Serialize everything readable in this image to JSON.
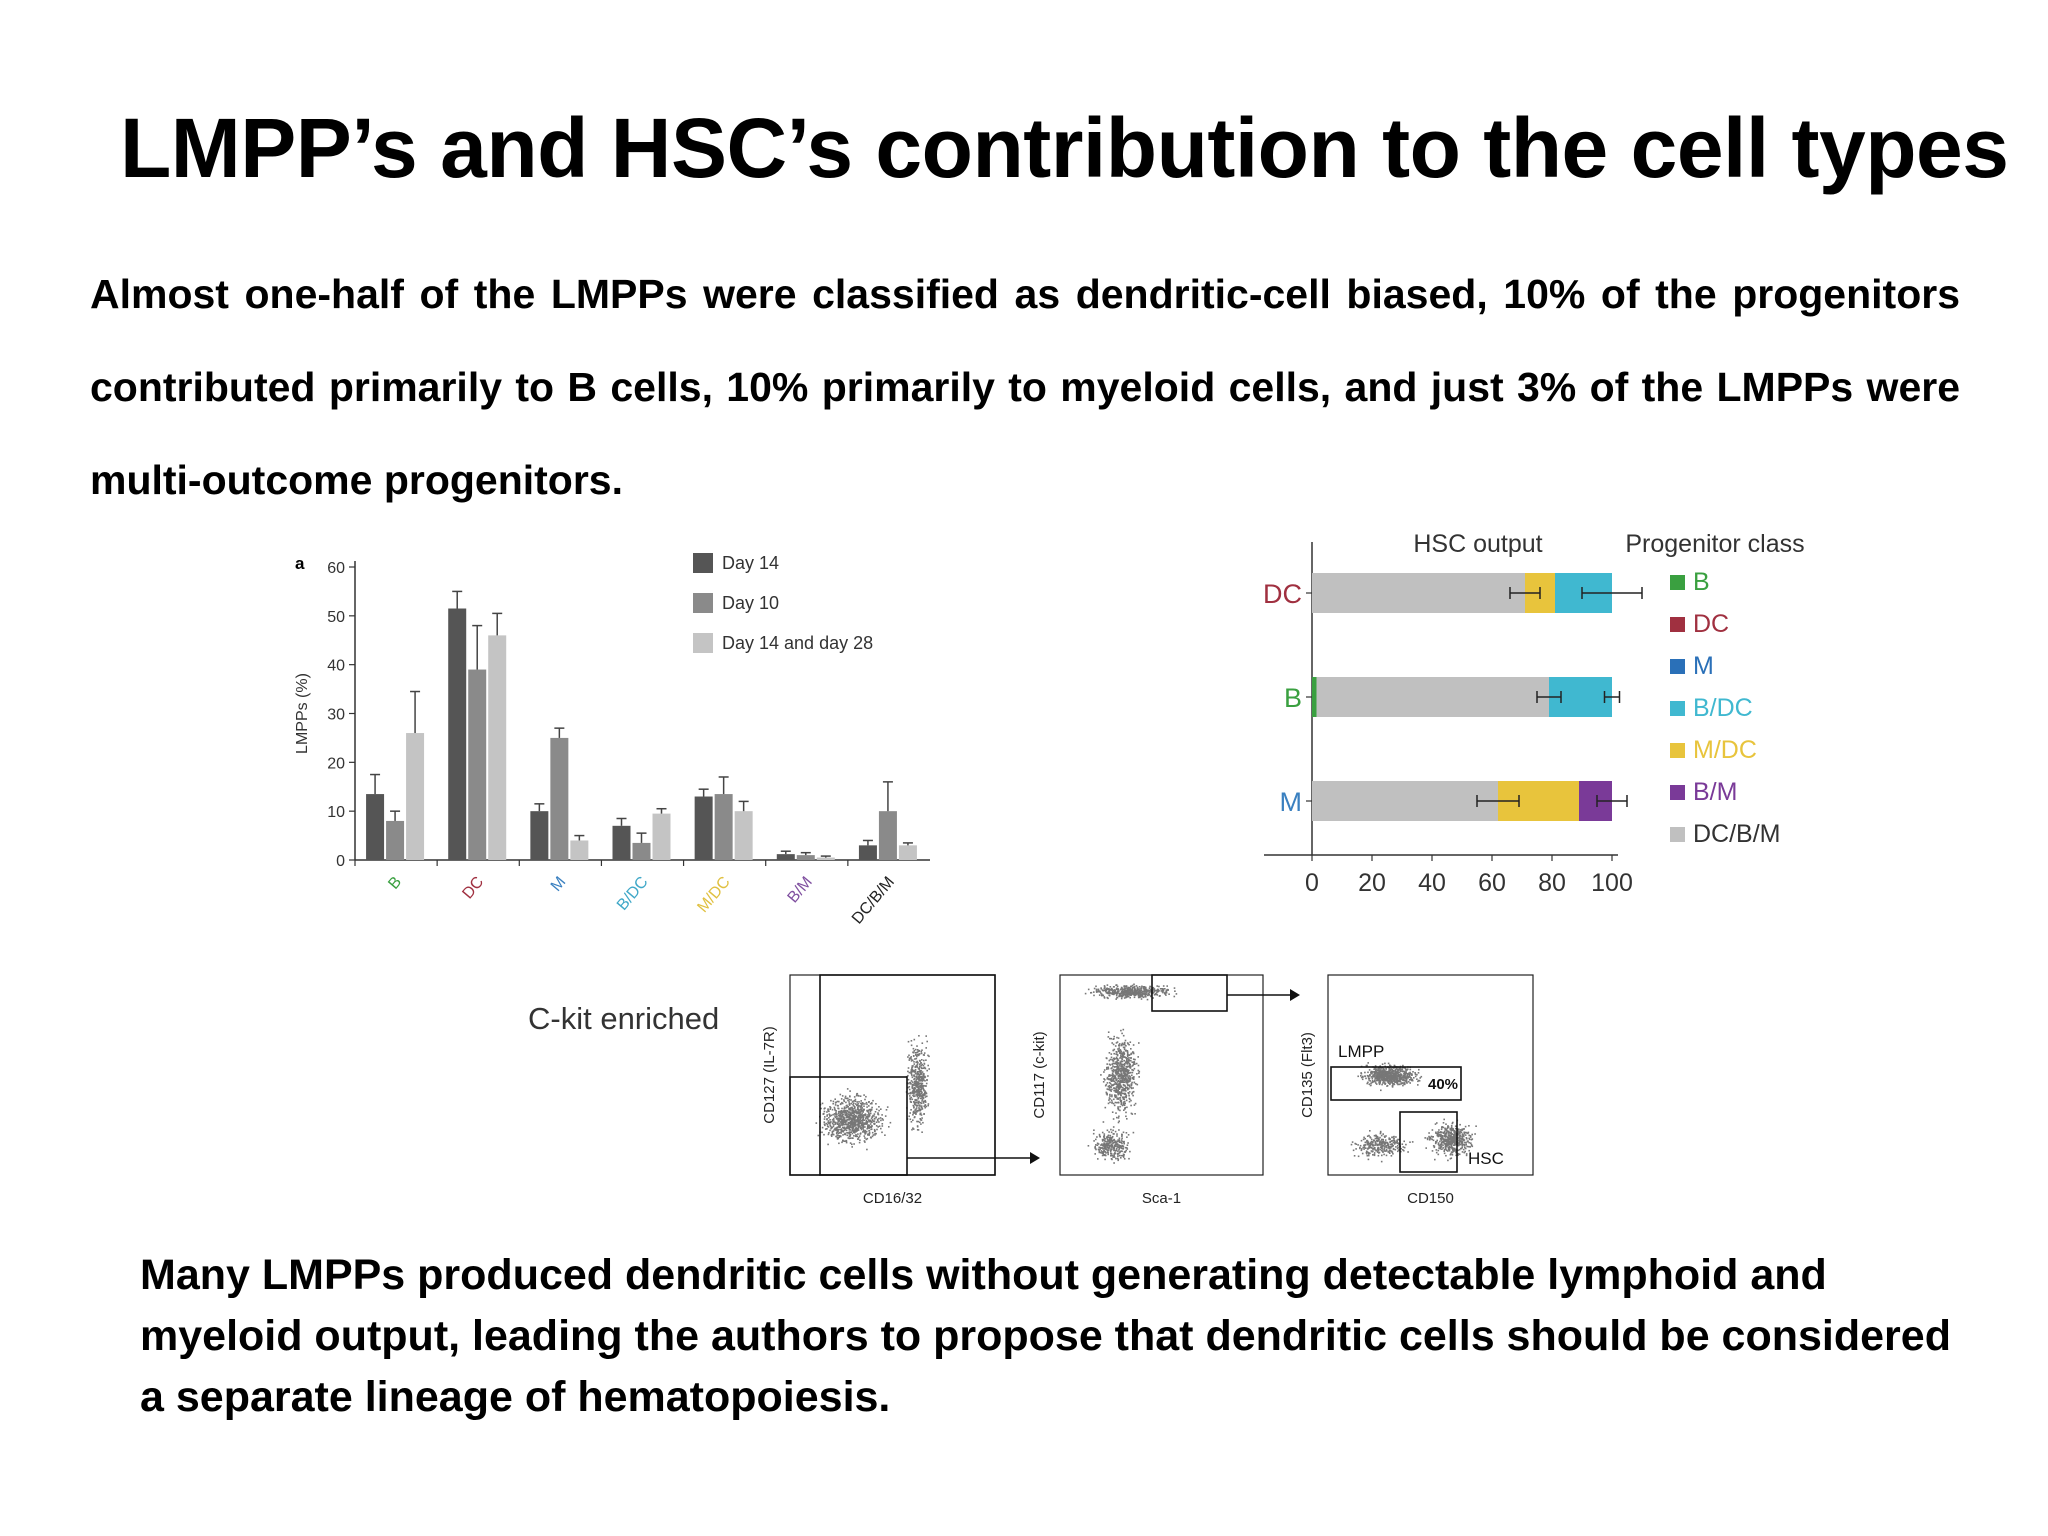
{
  "slide": {
    "title": "LMPP’s and HSC’s contribution to the cell types",
    "intro": "Almost one-half of the LMPPs were classified as dendritic-cell biased, 10% of the progenitors contributed primarily to B cells, 10% primarily to myeloid cells, and just 3% of the LMPPs were multi-outcome progenitors.",
    "outro": "Many LMPPs produced dendritic cells without generating detectable lymphoid and myeloid output, leading the authors to propose that dendritic cells should be considered a separate lineage of hematopoiesis."
  },
  "flow": {
    "label": "C-kit enriched",
    "panels": [
      {
        "ylabel": "CD127 (IL-7R)",
        "xlabel": "CD16/32"
      },
      {
        "ylabel": "CD117 (c-kit)",
        "xlabel": "Sca-1"
      },
      {
        "ylabel": "CD135 (Flt3)",
        "xlabel": "CD150",
        "gate1": "LMPP",
        "gate1_pct": "40%",
        "gate2": "HSC"
      }
    ]
  },
  "chart_data": [
    {
      "type": "bar",
      "panel_label": "a",
      "ylabel": "LMPPs (%)",
      "ylim": [
        0,
        60
      ],
      "yticks": [
        0,
        10,
        20,
        30,
        40,
        50,
        60
      ],
      "categories": [
        "B",
        "DC",
        "M",
        "B/DC",
        "M/DC",
        "B/M",
        "DC/B/M"
      ],
      "category_colors": [
        "#3aa040",
        "#a03040",
        "#3a80c0",
        "#40a8c8",
        "#e0c040",
        "#8050a0",
        "#222222"
      ],
      "series": [
        {
          "name": "Day 14",
          "color": "#555555",
          "values": [
            13.5,
            51.5,
            10,
            7,
            13,
            1.2,
            3
          ],
          "errors": [
            4,
            3.5,
            1.5,
            1.5,
            1.5,
            0.6,
            1
          ]
        },
        {
          "name": "Day 10",
          "color": "#8a8a8a",
          "values": [
            8,
            39,
            25,
            3.5,
            13.5,
            1,
            10
          ],
          "errors": [
            2,
            9,
            2,
            2,
            3.5,
            0.5,
            6
          ]
        },
        {
          "name": "Day 14 and day 28",
          "color": "#c4c4c4",
          "values": [
            26,
            46,
            4,
            9.5,
            10,
            0.5,
            3
          ],
          "errors": [
            8.5,
            4.5,
            1,
            1,
            2,
            0.3,
            0.5
          ]
        }
      ],
      "legend_position": "top-right"
    },
    {
      "type": "bar",
      "orientation": "horizontal",
      "stacked": true,
      "title": "HSC output",
      "legend_title": "Progenitor class",
      "xlim": [
        0,
        100
      ],
      "xticks": [
        0,
        20,
        40,
        60,
        80,
        100
      ],
      "categories": [
        "DC",
        "B",
        "M"
      ],
      "category_colors": [
        "#a03040",
        "#3aa040",
        "#3a80c0"
      ],
      "series": [
        {
          "name": "B",
          "color": "#3aa040",
          "values": [
            0,
            1.5,
            0
          ]
        },
        {
          "name": "DC",
          "color": "#a03040",
          "values": [
            0,
            0,
            0
          ]
        },
        {
          "name": "M",
          "color": "#2a70b8",
          "values": [
            0,
            0,
            0
          ]
        },
        {
          "name": "B/DC",
          "color": "#40b8d0",
          "values": [
            19,
            21,
            0
          ]
        },
        {
          "name": "M/DC",
          "color": "#e8c43c",
          "values": [
            10,
            0,
            27
          ]
        },
        {
          "name": "B/M",
          "color": "#7a3a98",
          "values": [
            0,
            0,
            11
          ]
        },
        {
          "name": "DC/B/M",
          "color": "#c0c0c0",
          "values": [
            71,
            77.5,
            62
          ]
        }
      ],
      "legend_position": "right"
    }
  ]
}
